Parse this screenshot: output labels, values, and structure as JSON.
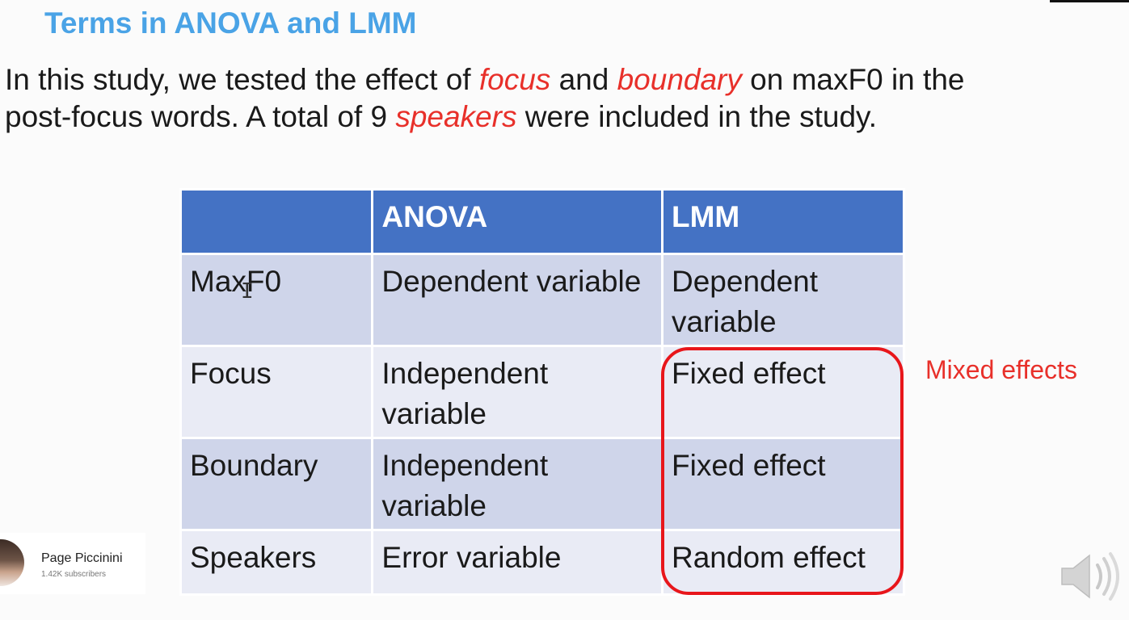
{
  "slide": {
    "title": "Terms in ANOVA and LMM",
    "intro": {
      "p1": "In this study, we tested the effect of ",
      "em1": "focus",
      "p2": " and ",
      "em2": "boundary",
      "p3": " on maxF0 in the",
      "p4": "post-focus words. A total of 9 ",
      "em3": "speakers",
      "p5": " were included in the study."
    },
    "table": {
      "headers": [
        "",
        "ANOVA",
        "LMM"
      ],
      "rows": [
        [
          "MaxF0",
          "Dependent variable",
          "Dependent variable"
        ],
        [
          "Focus",
          "Independent variable",
          "Fixed effect"
        ],
        [
          "Boundary",
          "Independent variable",
          "Fixed effect"
        ],
        [
          "Speakers",
          "Error variable",
          "Random effect"
        ]
      ]
    },
    "annotation": "Mixed effects"
  },
  "overlay": {
    "channel_name": "Page Piccinini",
    "subscribers": "1.42K subscribers",
    "speaker_icon": "volume-speaker-icon"
  },
  "colors": {
    "title": "#4aa3e6",
    "emphasis": "#e8302a",
    "header": "#4472c4",
    "row_dark": "#cfd5ea",
    "row_light": "#e9ebf5",
    "highlight": "#e8161b"
  }
}
